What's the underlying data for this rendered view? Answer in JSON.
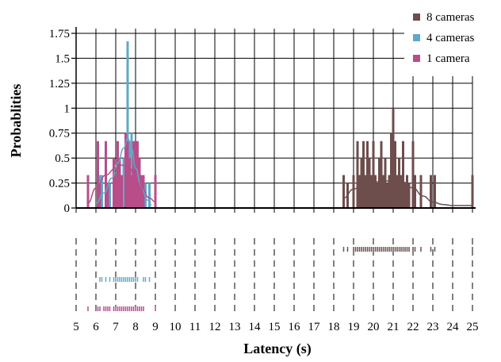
{
  "chart_data": {
    "type": "histogram",
    "xlabel": "Latency (s)",
    "ylabel": "Probablities",
    "xlim": [
      5,
      25
    ],
    "ylim": [
      0,
      1.75
    ],
    "xticks": [
      "5",
      "6",
      "7",
      "8",
      "9",
      "10",
      "11",
      "12",
      "13",
      "14",
      "15",
      "16",
      "17",
      "18",
      "19",
      "20",
      "21",
      "22",
      "23",
      "24",
      "25"
    ],
    "yticks": [
      "0",
      "0.25",
      "0.5",
      "0.75",
      "1",
      "1.25",
      "1.5",
      "1.75"
    ],
    "grid": true,
    "legend_position": "top-right",
    "series": [
      {
        "name": "8 cameras",
        "color": "#6e4d4d",
        "bars": [
          {
            "x": 18.5,
            "y": 0.33
          },
          {
            "x": 18.7,
            "y": 0.25
          },
          {
            "x": 19.0,
            "y": 0.33
          },
          {
            "x": 19.2,
            "y": 0.67
          },
          {
            "x": 19.3,
            "y": 0.33
          },
          {
            "x": 19.4,
            "y": 0.5
          },
          {
            "x": 19.5,
            "y": 0.67
          },
          {
            "x": 19.6,
            "y": 0.33
          },
          {
            "x": 19.7,
            "y": 0.67
          },
          {
            "x": 19.8,
            "y": 0.5
          },
          {
            "x": 19.9,
            "y": 0.33
          },
          {
            "x": 20.0,
            "y": 0.67
          },
          {
            "x": 20.1,
            "y": 0.33
          },
          {
            "x": 20.2,
            "y": 0.25
          },
          {
            "x": 20.3,
            "y": 0.5
          },
          {
            "x": 20.4,
            "y": 0.67
          },
          {
            "x": 20.5,
            "y": 0.33
          },
          {
            "x": 20.6,
            "y": 0.5
          },
          {
            "x": 20.7,
            "y": 0.25
          },
          {
            "x": 20.8,
            "y": 0.33
          },
          {
            "x": 20.9,
            "y": 0.75
          },
          {
            "x": 21.0,
            "y": 1.0
          },
          {
            "x": 21.1,
            "y": 0.67
          },
          {
            "x": 21.2,
            "y": 0.33
          },
          {
            "x": 21.3,
            "y": 0.5
          },
          {
            "x": 21.4,
            "y": 0.33
          },
          {
            "x": 21.5,
            "y": 0.67
          },
          {
            "x": 21.6,
            "y": 0.25
          },
          {
            "x": 21.7,
            "y": 0.33
          },
          {
            "x": 21.8,
            "y": 0.25
          },
          {
            "x": 22.0,
            "y": 0.67
          },
          {
            "x": 22.1,
            "y": 0.33
          },
          {
            "x": 22.4,
            "y": 0.33
          },
          {
            "x": 22.9,
            "y": 0.33
          },
          {
            "x": 23.1,
            "y": 0.33
          },
          {
            "x": 25.0,
            "y": 0.33
          }
        ],
        "kde": [
          [
            18.5,
            0.1
          ],
          [
            19.0,
            0.19
          ],
          [
            19.5,
            0.24
          ],
          [
            20.0,
            0.26
          ],
          [
            20.5,
            0.27
          ],
          [
            21.0,
            0.27
          ],
          [
            21.5,
            0.26
          ],
          [
            22.0,
            0.2
          ],
          [
            22.5,
            0.12
          ],
          [
            23.0,
            0.06
          ],
          [
            23.5,
            0.035
          ],
          [
            24.0,
            0.025
          ],
          [
            24.5,
            0.025
          ],
          [
            25.0,
            0.025
          ]
        ],
        "rug": [
          18.5,
          18.7,
          19.0,
          19.1,
          19.2,
          19.3,
          19.4,
          19.5,
          19.6,
          19.7,
          19.8,
          19.9,
          20.0,
          20.1,
          20.2,
          20.3,
          20.4,
          20.5,
          20.6,
          20.7,
          20.8,
          20.9,
          21.0,
          21.1,
          21.2,
          21.3,
          21.4,
          21.5,
          21.6,
          21.7,
          21.8,
          22.0,
          22.1,
          22.4,
          22.9,
          23.1,
          25.0
        ]
      },
      {
        "name": "4 cameras",
        "color": "#5fa9c8",
        "bars": [
          {
            "x": 6.2,
            "y": 0.33
          },
          {
            "x": 6.3,
            "y": 0.33
          },
          {
            "x": 6.5,
            "y": 0.33
          },
          {
            "x": 6.7,
            "y": 0.25
          },
          {
            "x": 6.9,
            "y": 0.33
          },
          {
            "x": 7.0,
            "y": 0.33
          },
          {
            "x": 7.1,
            "y": 0.33
          },
          {
            "x": 7.2,
            "y": 0.5
          },
          {
            "x": 7.3,
            "y": 0.33
          },
          {
            "x": 7.4,
            "y": 0.5
          },
          {
            "x": 7.5,
            "y": 0.67
          },
          {
            "x": 7.6,
            "y": 1.67
          },
          {
            "x": 7.7,
            "y": 0.67
          },
          {
            "x": 7.8,
            "y": 0.75
          },
          {
            "x": 7.9,
            "y": 0.33
          },
          {
            "x": 8.0,
            "y": 0.5
          },
          {
            "x": 8.1,
            "y": 0.33
          },
          {
            "x": 8.4,
            "y": 0.33
          },
          {
            "x": 8.5,
            "y": 0.25
          },
          {
            "x": 8.7,
            "y": 0.25
          }
        ],
        "kde": [
          [
            6.0,
            0.05
          ],
          [
            6.4,
            0.15
          ],
          [
            6.8,
            0.3
          ],
          [
            7.1,
            0.45
          ],
          [
            7.4,
            0.6
          ],
          [
            7.6,
            0.7
          ],
          [
            7.8,
            0.6
          ],
          [
            8.0,
            0.4
          ],
          [
            8.3,
            0.2
          ],
          [
            8.6,
            0.08
          ],
          [
            8.8,
            0.03
          ]
        ],
        "rug": [
          6.2,
          6.3,
          6.5,
          6.7,
          6.9,
          7.0,
          7.1,
          7.2,
          7.3,
          7.4,
          7.5,
          7.6,
          7.7,
          7.8,
          7.9,
          8.0,
          8.1,
          8.4,
          8.5,
          8.7
        ]
      },
      {
        "name": "1 camera",
        "color": "#b84d8a",
        "bars": [
          {
            "x": 5.6,
            "y": 0.33
          },
          {
            "x": 6.1,
            "y": 0.67
          },
          {
            "x": 6.2,
            "y": 0.25
          },
          {
            "x": 6.5,
            "y": 0.67
          },
          {
            "x": 6.6,
            "y": 0.25
          },
          {
            "x": 6.9,
            "y": 0.5
          },
          {
            "x": 7.0,
            "y": 0.33
          },
          {
            "x": 7.1,
            "y": 0.67
          },
          {
            "x": 7.2,
            "y": 0.5
          },
          {
            "x": 7.3,
            "y": 0.33
          },
          {
            "x": 7.5,
            "y": 0.75
          },
          {
            "x": 7.6,
            "y": 0.67
          },
          {
            "x": 7.7,
            "y": 0.5
          },
          {
            "x": 7.8,
            "y": 0.33
          },
          {
            "x": 7.9,
            "y": 0.67
          },
          {
            "x": 8.0,
            "y": 0.67
          },
          {
            "x": 8.1,
            "y": 0.67
          },
          {
            "x": 8.2,
            "y": 0.5
          },
          {
            "x": 8.3,
            "y": 0.33
          },
          {
            "x": 8.4,
            "y": 0.33
          },
          {
            "x": 9.0,
            "y": 0.33
          }
        ],
        "kde": [
          [
            5.6,
            0.05
          ],
          [
            6.0,
            0.2
          ],
          [
            6.5,
            0.33
          ],
          [
            7.0,
            0.4
          ],
          [
            7.3,
            0.43
          ],
          [
            7.7,
            0.4
          ],
          [
            8.0,
            0.3
          ],
          [
            8.3,
            0.2
          ],
          [
            8.7,
            0.1
          ],
          [
            9.0,
            0.06
          ]
        ],
        "rug": [
          5.6,
          6.1,
          6.2,
          6.4,
          6.5,
          6.6,
          6.7,
          6.9,
          7.0,
          7.1,
          7.2,
          7.3,
          7.4,
          7.5,
          7.6,
          7.7,
          7.8,
          7.9,
          8.0,
          8.1,
          8.2,
          8.3,
          8.4,
          9.0
        ]
      }
    ]
  }
}
